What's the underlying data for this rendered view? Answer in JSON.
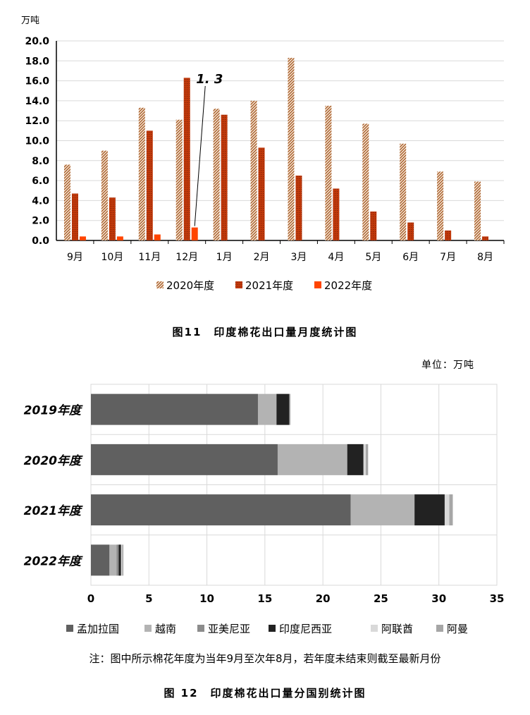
{
  "chart_data": [
    {
      "type": "bar",
      "title": "",
      "caption": "图11　印度棉花出口量月度统计图",
      "ylabel": "万吨",
      "xlabel": "",
      "ylim": [
        0,
        20
      ],
      "yticks": [
        "0.0",
        "2.0",
        "4.0",
        "6.0",
        "8.0",
        "10.0",
        "12.0",
        "14.0",
        "16.0",
        "18.0",
        "20.0"
      ],
      "categories": [
        "9月",
        "10月",
        "11月",
        "12月",
        "1月",
        "2月",
        "3月",
        "4月",
        "5月",
        "6月",
        "7月",
        "8月"
      ],
      "series": [
        {
          "name": "2020年度",
          "color": "#b5651d",
          "pattern": "hatch",
          "values": [
            7.6,
            9.0,
            13.3,
            12.1,
            13.2,
            14.0,
            18.3,
            13.5,
            11.7,
            9.7,
            6.9,
            5.9
          ]
        },
        {
          "name": "2021年度",
          "color": "#c0390b",
          "pattern": "dots",
          "values": [
            4.7,
            4.3,
            11.0,
            16.3,
            12.6,
            9.3,
            6.5,
            5.2,
            2.9,
            1.8,
            1.0,
            0.4
          ]
        },
        {
          "name": "2022年度",
          "color": "#ff4500",
          "pattern": "solid",
          "values": [
            0.4,
            0.4,
            0.6,
            1.3,
            null,
            null,
            null,
            null,
            null,
            null,
            null,
            null
          ]
        }
      ],
      "annotation": {
        "text": "1. 3",
        "category": "12月",
        "series": "2022年度"
      },
      "legend_position": "bottom",
      "grid": true
    },
    {
      "type": "bar",
      "orientation": "horizontal",
      "stacked": true,
      "title": "",
      "caption": "图 12　印度棉花出口量分国别统计图",
      "unit_label": "单位：万吨",
      "xlim": [
        0,
        35
      ],
      "xticks": [
        "0",
        "5",
        "10",
        "15",
        "20",
        "25",
        "30",
        "35"
      ],
      "categories": [
        "2019年度",
        "2020年度",
        "2021年度",
        "2022年度"
      ],
      "series": [
        {
          "name": "孟加拉国",
          "color": "#606060",
          "values": [
            14.4,
            16.1,
            22.4,
            1.6
          ]
        },
        {
          "name": "越南",
          "color": "#b3b3b3",
          "values": [
            1.6,
            6.0,
            5.5,
            0.6
          ]
        },
        {
          "name": "亚美尼亚",
          "color": "#8c8c8c",
          "values": [
            0.0,
            0.0,
            0.0,
            0.2
          ]
        },
        {
          "name": "印度尼西亚",
          "color": "#222222",
          "values": [
            1.1,
            1.4,
            2.6,
            0.2
          ]
        },
        {
          "name": "阿联酋",
          "color": "#d9d9d9",
          "values": [
            0.0,
            0.2,
            0.4,
            0.1
          ]
        },
        {
          "name": "阿曼",
          "color": "#a6a6a6",
          "values": [
            0.1,
            0.2,
            0.3,
            0.1
          ]
        }
      ],
      "legend_position": "bottom",
      "grid": true,
      "note": "注：图中所示棉花年度为当年9月至次年8月，若年度未结束则截至最新月份"
    }
  ]
}
